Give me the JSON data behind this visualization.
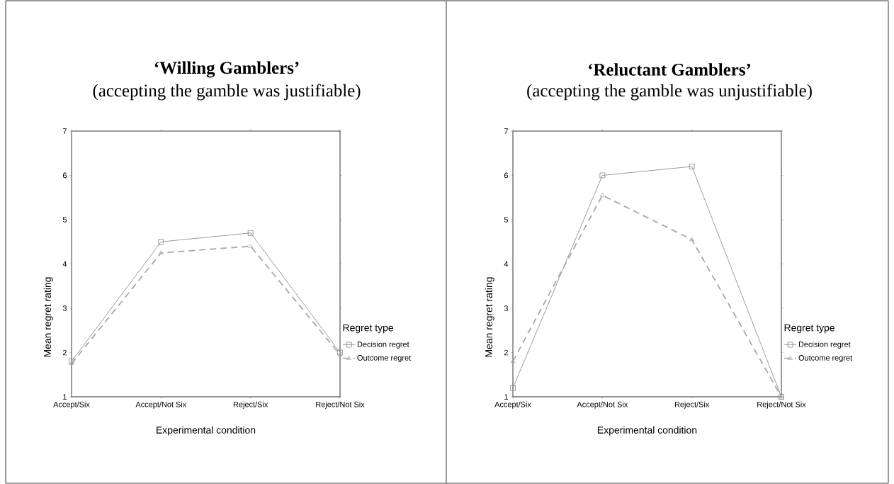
{
  "chart_data": [
    {
      "type": "line",
      "title": "‘Willing Gamblers’",
      "subtitle": "(accepting the gamble was justifiable)",
      "xlabel": "Experimental condition",
      "ylabel": "Mean regret rating",
      "legend_title": "Regret type",
      "categories": [
        "Accept/Six",
        "Accept/Not Six",
        "Reject/Six",
        "Reject/Not Six"
      ],
      "ylim": [
        1,
        7
      ],
      "yticks": [
        1,
        2,
        3,
        4,
        5,
        6,
        7
      ],
      "legend": "right",
      "grid": false,
      "series": [
        {
          "name": "Decision regret",
          "color": "#808080",
          "marker": "square",
          "line_style": "solid",
          "values": [
            1.8,
            4.5,
            4.7,
            2.0
          ]
        },
        {
          "name": "Outcome regret",
          "color": "#a8a8a8",
          "marker": "triangle",
          "line_style": "dashed",
          "values": [
            1.75,
            4.25,
            4.4,
            1.95
          ]
        }
      ]
    },
    {
      "type": "line",
      "title": "‘Reluctant Gamblers’",
      "subtitle": "(accepting the gamble was unjustifiable)",
      "xlabel": "Experimental condition",
      "ylabel": "Mean regret rating",
      "legend_title": "Regret type",
      "categories": [
        "Accept/Six",
        "Accept/Not Six",
        "Reject/Six",
        "Reject/Not Six"
      ],
      "ylim": [
        1,
        7
      ],
      "yticks": [
        1,
        2,
        3,
        4,
        5,
        6,
        7
      ],
      "legend": "right",
      "grid": false,
      "series": [
        {
          "name": "Decision regret",
          "color": "#808080",
          "marker": "square",
          "line_style": "solid",
          "values": [
            1.2,
            6.0,
            6.2,
            1.0
          ]
        },
        {
          "name": "Outcome regret",
          "color": "#a8a8a8",
          "marker": "triangle",
          "line_style": "dashed",
          "values": [
            1.8,
            5.55,
            4.55,
            1.0
          ]
        }
      ]
    }
  ]
}
